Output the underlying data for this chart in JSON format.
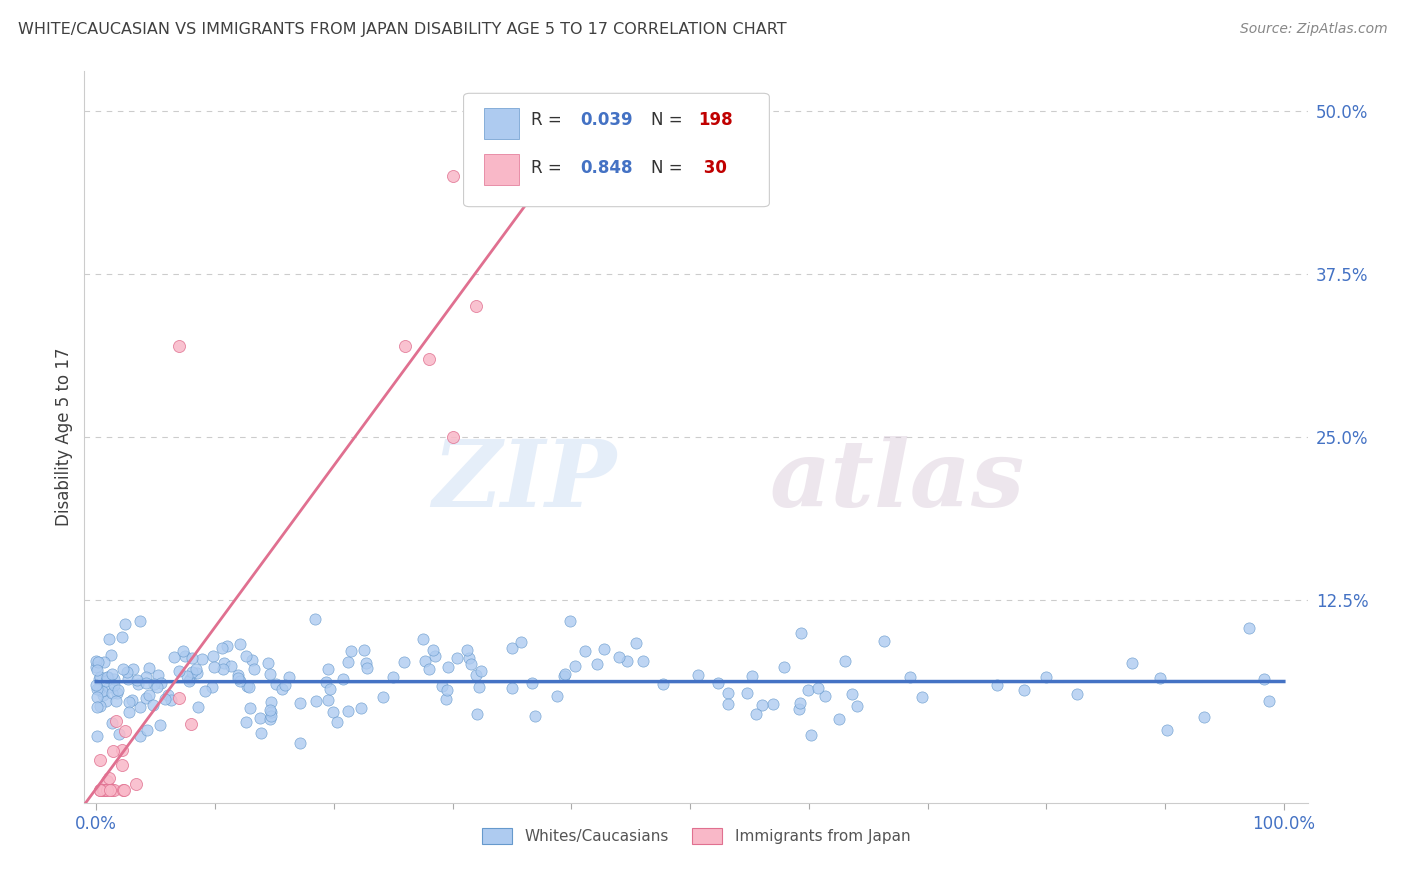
{
  "title": "WHITE/CAUCASIAN VS IMMIGRANTS FROM JAPAN DISABILITY AGE 5 TO 17 CORRELATION CHART",
  "source_text": "Source: ZipAtlas.com",
  "ylabel": "Disability Age 5 to 17",
  "watermark_zip": "ZIP",
  "watermark_atlas": "atlas",
  "series": [
    {
      "name": "Whites/Caucasians",
      "R": 0.039,
      "N": 198,
      "color": "#aecbf0",
      "edge_color": "#6699cc",
      "line_color": "#4472c4"
    },
    {
      "name": "Immigrants from Japan",
      "R": 0.848,
      "N": 30,
      "color": "#f9b8c8",
      "edge_color": "#e07090",
      "line_color": "#e07090"
    }
  ],
  "ylim": [
    -0.03,
    0.53
  ],
  "xlim": [
    -0.01,
    1.02
  ],
  "yticks": [
    0.0,
    0.125,
    0.25,
    0.375,
    0.5
  ],
  "ytick_labels": [
    "",
    "12.5%",
    "25.0%",
    "37.5%",
    "50.0%"
  ],
  "xtick_labels": [
    "0.0%",
    "100.0%"
  ],
  "bg_color": "#ffffff",
  "legend_R_color": "#4472c4",
  "legend_N_color": "#c00000",
  "grid_color": "#cccccc",
  "title_color": "#404040",
  "axis_color": "#cccccc"
}
